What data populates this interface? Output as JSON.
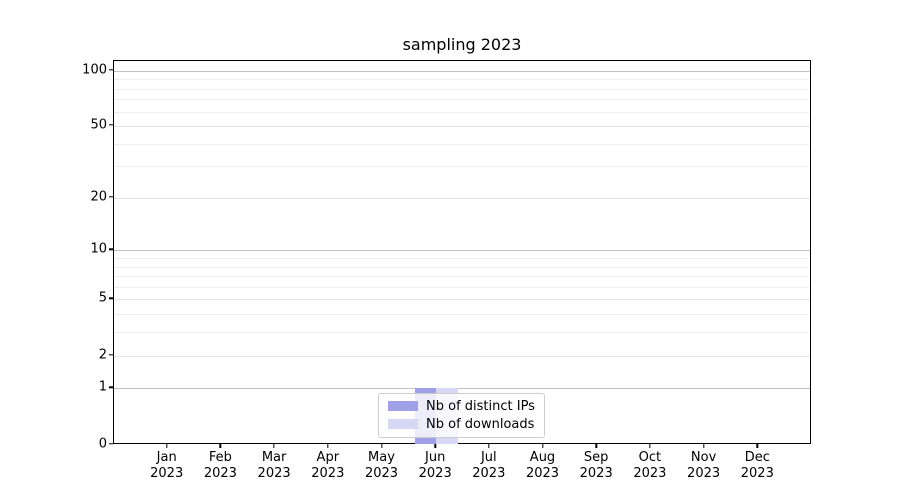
{
  "figure": {
    "background": "#ffffff"
  },
  "chart_data": {
    "type": "bar",
    "title": "sampling 2023",
    "categories": [
      "Jan",
      "Feb",
      "Mar",
      "Apr",
      "May",
      "Jun",
      "Jul",
      "Aug",
      "Sep",
      "Oct",
      "Nov",
      "Dec"
    ],
    "category_year": "2023",
    "series": [
      {
        "name": "Nb of distinct IPs",
        "color": "#a0a0e8",
        "values": [
          0,
          0,
          0,
          0,
          0,
          1,
          0,
          0,
          0,
          0,
          0,
          0
        ]
      },
      {
        "name": "Nb of downloads",
        "color": "#d8d8f4",
        "values": [
          0,
          0,
          0,
          0,
          0,
          1,
          0,
          0,
          0,
          0,
          0,
          0
        ]
      }
    ],
    "xlabel": "",
    "ylabel": "",
    "y_axis": {
      "scale": "log1p",
      "ticks": [
        0,
        1,
        2,
        5,
        10,
        20,
        50,
        100
      ],
      "decade_ticks": [
        1,
        10,
        100
      ],
      "minor_ticks": [
        3,
        4,
        6,
        7,
        8,
        9,
        30,
        40,
        60,
        70,
        80,
        90
      ],
      "top_value": 113,
      "ylim": [
        0,
        113
      ]
    },
    "grid": true,
    "legend_position": "lower center"
  },
  "colors": {
    "grid_decade": "#c3c3c3",
    "grid_labeled": "#e3e3e3",
    "grid_minor": "#eeeeee",
    "spine": "#000000",
    "legend_border": "#cccccc"
  }
}
